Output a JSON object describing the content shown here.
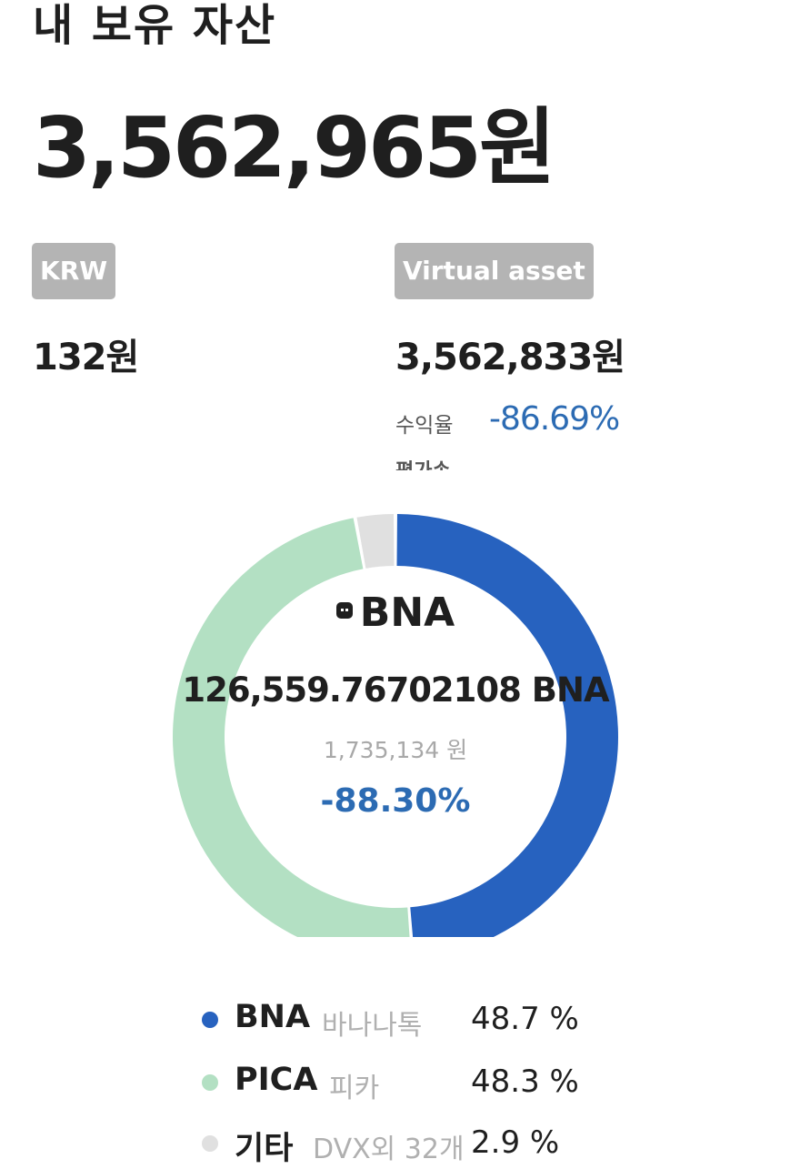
{
  "header": {
    "title": "내 보유 자산",
    "total": "3,562,965원"
  },
  "summary": {
    "krw": {
      "badge": "KRW",
      "amount": "132원"
    },
    "virtual": {
      "badge": "Virtual asset",
      "amount": "3,562,833원",
      "yield_label": "수익율",
      "yield_value": "-86.69%",
      "cut_text": "평가손"
    }
  },
  "chart_data": {
    "type": "pie",
    "style": "donut",
    "categories": [
      "BNA",
      "PICA",
      "기타"
    ],
    "values": [
      48.7,
      48.3,
      2.9
    ],
    "colors": [
      "#2762bf",
      "#b3e0c3",
      "#e0e0e0"
    ]
  },
  "center": {
    "symbol": "BNA",
    "quantity": "126,559.76702108 BNA",
    "krw_value": "1,735,134 원",
    "rate": "-88.30%"
  },
  "legend": [
    {
      "symbol": "BNA",
      "name": "바나나톡",
      "percent": "48.7 %",
      "color": "#2762bf"
    },
    {
      "symbol": "PICA",
      "name": "피카",
      "percent": "48.3 %",
      "color": "#b3e0c3"
    },
    {
      "symbol": "기타",
      "name": "DVX외 32개",
      "percent": "2.9 %",
      "color": "#e0e0e0"
    }
  ]
}
